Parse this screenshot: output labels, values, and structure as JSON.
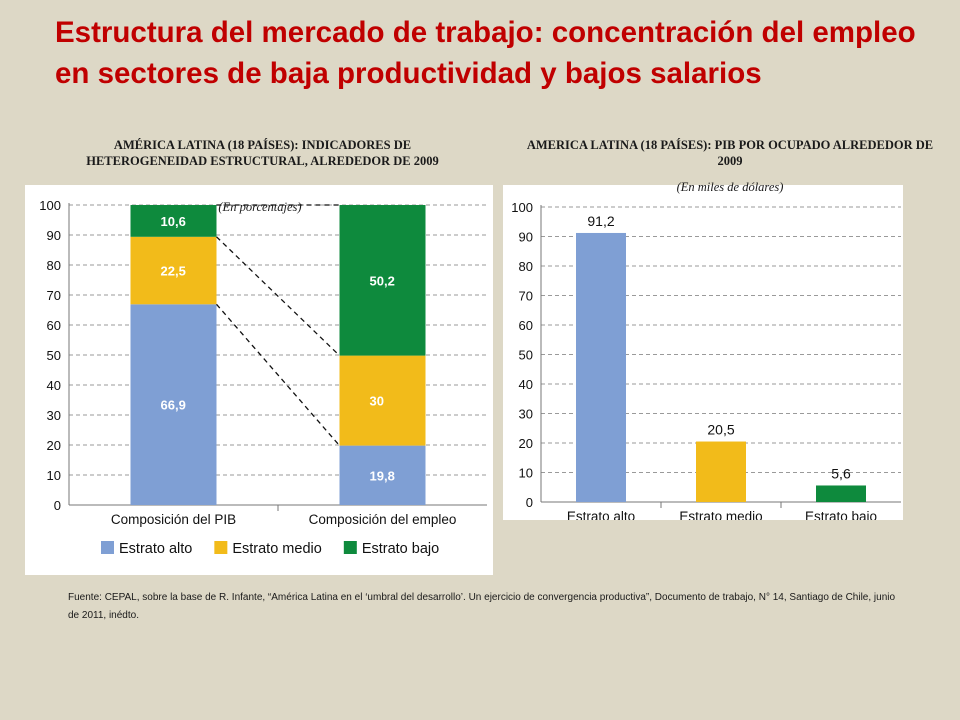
{
  "title": "Estructura del mercado de trabajo: concentración del empleo en sectores de baja productividad y bajos salarios",
  "colors": {
    "alto": "#7f9fd4",
    "medio": "#f2bb1a",
    "bajo": "#0e8a3d",
    "title": "#c00000"
  },
  "left_chart": {
    "title": "AMÉRICA LATINA (18 PAÍSES): INDICADORES DE HETEROGENEIDAD ESTRUCTURAL, ALREDEDOR DE 2009",
    "subtitle": "(En porcentajes)"
  },
  "right_chart": {
    "title": "AMERICA LATINA (18 PAÍSES): PIB POR OCUPADO ALREDEDOR DE  2009",
    "subtitle": "(En miles de dólares)"
  },
  "chart_data": [
    {
      "type": "bar",
      "stacked": true,
      "categories": [
        "Composición del PIB",
        "Composición del empleo"
      ],
      "series": [
        {
          "name": "Estrato alto",
          "values": [
            66.9,
            19.8
          ],
          "labels": [
            "66,9",
            "19,8"
          ]
        },
        {
          "name": "Estrato medio",
          "values": [
            22.5,
            30.0
          ],
          "labels": [
            "22,5",
            "30"
          ]
        },
        {
          "name": "Estrato bajo",
          "values": [
            10.6,
            50.2
          ],
          "labels": [
            "10,6",
            "50,2"
          ]
        }
      ],
      "yticks": [
        "0",
        "10",
        "20",
        "30",
        "40",
        "50",
        "60",
        "70",
        "80",
        "90",
        "100"
      ],
      "ylim": [
        0,
        100
      ],
      "grid": true,
      "legend": "bottom"
    },
    {
      "type": "bar",
      "categories": [
        "Estrato alto",
        "Estrato medio",
        "Estrato bajo"
      ],
      "values": [
        91.2,
        20.5,
        5.6
      ],
      "labels": [
        "91,2",
        "20,5",
        "5,6"
      ],
      "yticks": [
        "0",
        "10",
        "20",
        "30",
        "40",
        "50",
        "60",
        "70",
        "80",
        "90",
        "100"
      ],
      "ylim": [
        0,
        100
      ],
      "grid": true
    }
  ],
  "source": "Fuente: CEPAL, sobre la base de R. Infante, “América Latina en el ‘umbral del desarrollo’. Un ejercicio de convergencia productiva”, Documento de trabajo, N°  14, Santiago de Chile, junio de 2011, inédto."
}
